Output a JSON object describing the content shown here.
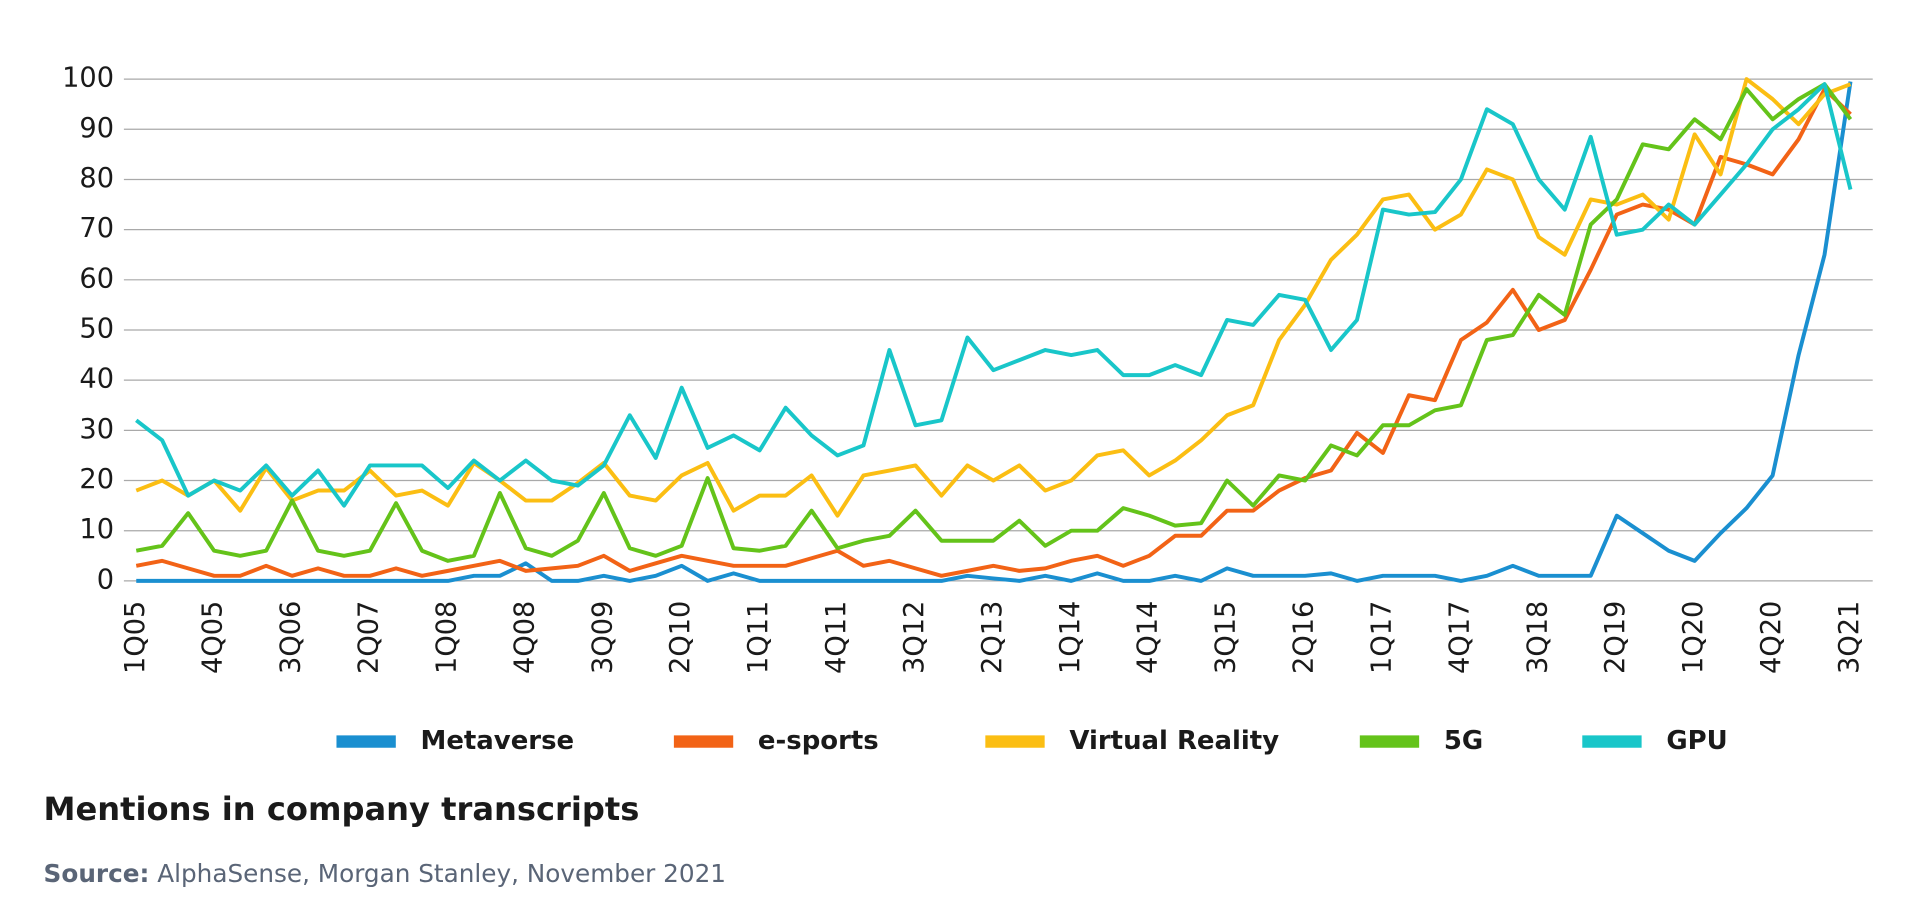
{
  "chart_data": {
    "type": "line",
    "title": "Mentions in company transcripts",
    "source_label": "Source:",
    "source": "AlphaSense, Morgan Stanley, November 2021",
    "categories": [
      "1Q05",
      null,
      null,
      "4Q05",
      null,
      null,
      "3Q06",
      null,
      null,
      "2Q07",
      null,
      null,
      "1Q08",
      null,
      null,
      "4Q08",
      null,
      null,
      "3Q09",
      null,
      null,
      "2Q10",
      null,
      null,
      "1Q11",
      null,
      null,
      "4Q11",
      null,
      null,
      "3Q12",
      null,
      null,
      "2Q13",
      null,
      null,
      "1Q14",
      null,
      null,
      "4Q14",
      null,
      null,
      "3Q15",
      null,
      null,
      "2Q16",
      null,
      null,
      "1Q17",
      null,
      null,
      "4Q17",
      null,
      null,
      "3Q18",
      null,
      null,
      "2Q19",
      null,
      null,
      "1Q20",
      null,
      null,
      "4Q20",
      null,
      null,
      "3Q21"
    ],
    "ylim": [
      0,
      100
    ],
    "yticks": [
      0,
      10,
      20,
      30,
      40,
      50,
      60,
      70,
      80,
      90,
      100
    ],
    "grid": true,
    "legend": "bottom",
    "series": [
      {
        "name": "Metaverse",
        "color": "#1a8fd0",
        "values": [
          0,
          0,
          0,
          0,
          0,
          0,
          0,
          0,
          0,
          0,
          0,
          0,
          0,
          1,
          1,
          3.5,
          0,
          0,
          1,
          0,
          1,
          3,
          0,
          1.5,
          0,
          0,
          0,
          0,
          0,
          0,
          0,
          0,
          1,
          0.5,
          0,
          1,
          0,
          1.5,
          0,
          0,
          1,
          0,
          2.5,
          1,
          1,
          1,
          1.5,
          0,
          1,
          1,
          1,
          0,
          1,
          3,
          1,
          1,
          1,
          13,
          9.5,
          6,
          4,
          9.5,
          14.5,
          21,
          45,
          65,
          99.5
        ]
      },
      {
        "name": "e-sports",
        "color": "#f26316",
        "values": [
          3,
          4,
          2.5,
          1,
          1,
          3,
          1,
          2.5,
          1,
          1,
          2.5,
          1,
          2,
          3,
          4,
          2,
          2.5,
          3,
          5,
          2,
          3.5,
          5,
          4,
          3,
          3,
          3,
          4.5,
          6,
          3,
          4,
          2.5,
          1,
          2,
          3,
          2,
          2.5,
          4,
          5,
          3,
          5,
          9,
          9,
          14,
          14,
          18,
          20.5,
          22,
          29.5,
          25.5,
          37,
          36,
          48,
          51.5,
          58,
          50,
          52,
          62,
          73,
          75,
          74,
          71,
          84.5,
          83,
          81,
          88,
          98,
          93
        ]
      },
      {
        "name": "Virtual Reality",
        "color": "#fbbe13",
        "values": [
          18,
          20,
          17,
          20,
          14,
          22.5,
          16,
          18,
          18,
          22,
          17,
          18,
          15,
          23.5,
          20,
          16,
          16,
          19.5,
          23.5,
          17,
          16,
          21,
          23.5,
          14,
          17,
          17,
          21,
          13,
          21,
          22,
          23,
          17,
          23,
          20,
          23,
          18,
          20,
          25,
          26,
          21,
          24,
          28,
          33,
          35,
          48,
          55,
          64,
          69,
          76,
          77,
          70,
          73,
          82,
          80,
          68.5,
          65,
          76,
          75,
          77,
          72,
          89,
          81,
          100,
          96,
          91,
          97,
          99
        ]
      },
      {
        "name": "5G",
        "color": "#64c31a",
        "values": [
          6,
          7,
          13.5,
          6,
          5,
          6,
          16,
          6,
          5,
          6,
          15.5,
          6,
          4,
          5,
          17.5,
          6.5,
          5,
          8,
          17.5,
          6.5,
          5,
          7,
          20.5,
          6.5,
          6,
          7,
          14,
          6.5,
          8,
          9,
          14,
          8,
          8,
          8,
          12,
          7,
          10,
          10,
          14.5,
          13,
          11,
          11.5,
          20,
          15,
          21,
          20,
          27,
          25,
          31,
          31,
          34,
          35,
          48,
          49,
          57,
          53,
          71,
          76,
          87,
          86,
          92,
          88,
          98,
          92,
          96,
          99,
          92
        ]
      },
      {
        "name": "GPU",
        "color": "#19c6c9",
        "values": [
          32,
          28,
          17,
          20,
          18,
          23,
          17,
          22,
          15,
          23,
          23,
          23,
          18.5,
          24,
          20,
          24,
          20,
          19,
          23,
          33,
          24.5,
          38.5,
          26.5,
          29,
          26,
          34.5,
          29,
          25,
          27,
          46,
          31,
          32,
          48.5,
          42,
          44,
          46,
          45,
          46,
          41,
          41,
          43,
          41,
          52,
          51,
          57,
          56,
          46,
          52,
          74,
          73,
          73.5,
          80,
          94,
          91,
          80,
          74,
          88.5,
          69,
          70,
          75,
          71,
          77,
          83,
          90,
          94,
          99,
          78
        ]
      }
    ]
  }
}
